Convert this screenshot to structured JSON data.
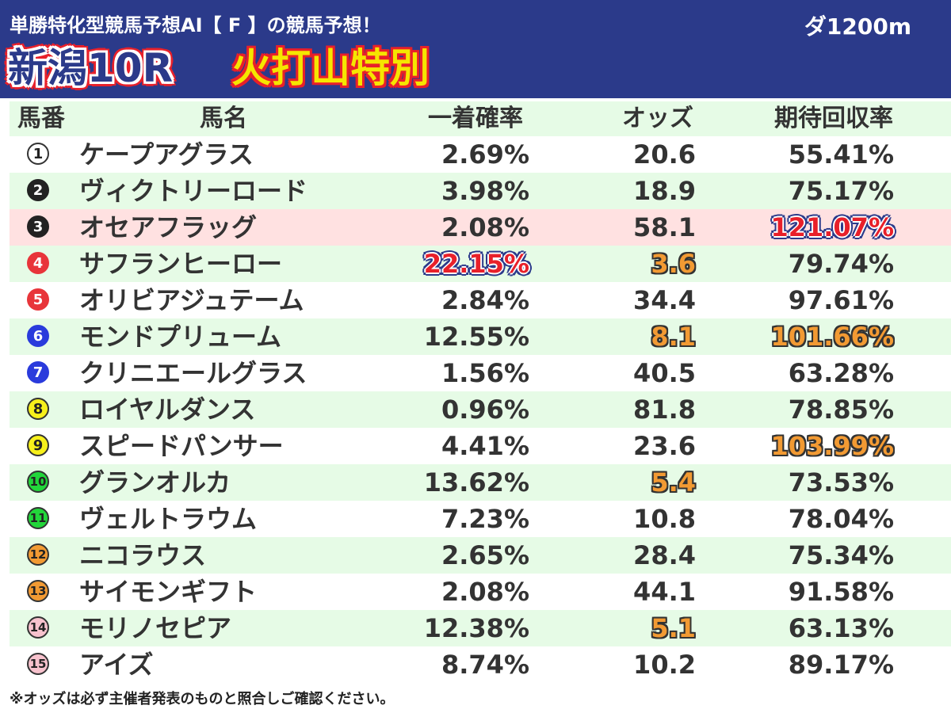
{
  "header": {
    "subtitle": "単勝特化型競馬予想AI【 F 】の競馬予想！",
    "venue": "新潟10R",
    "race_name": "火打山特別",
    "distance": "ダ1200m"
  },
  "columns": {
    "number": "馬番",
    "name": "馬名",
    "win_prob": "一着確率",
    "odds": "オッズ",
    "roi": "期待回収率"
  },
  "rows": [
    {
      "num": "1",
      "badge": "white",
      "name": "ケープアグラス",
      "prob": "2.69%",
      "odds": "20.6",
      "roi": "55.41%"
    },
    {
      "num": "2",
      "badge": "black",
      "name": "ヴィクトリーロード",
      "prob": "3.98%",
      "odds": "18.9",
      "roi": "75.17%"
    },
    {
      "num": "3",
      "badge": "black",
      "name": "オセアフラッグ",
      "prob": "2.08%",
      "odds": "58.1",
      "roi": "121.07%",
      "row_hl": true,
      "roi_hl": "blue"
    },
    {
      "num": "4",
      "badge": "red",
      "name": "サフランヒーロー",
      "prob": "22.15%",
      "odds": "3.6",
      "roi": "79.74%",
      "prob_hl": "blue",
      "odds_hl": "orange"
    },
    {
      "num": "5",
      "badge": "red",
      "name": "オリビアジュテーム",
      "prob": "2.84%",
      "odds": "34.4",
      "roi": "97.61%"
    },
    {
      "num": "6",
      "badge": "blue",
      "name": "モンドプリューム",
      "prob": "12.55%",
      "odds": "8.1",
      "roi": "101.66%",
      "odds_hl": "orange",
      "roi_hl": "orange"
    },
    {
      "num": "7",
      "badge": "blue",
      "name": "クリニエールグラス",
      "prob": "1.56%",
      "odds": "40.5",
      "roi": "63.28%"
    },
    {
      "num": "8",
      "badge": "yellow",
      "name": "ロイヤルダンス",
      "prob": "0.96%",
      "odds": "81.8",
      "roi": "78.85%"
    },
    {
      "num": "9",
      "badge": "yellow",
      "name": "スピードパンサー",
      "prob": "4.41%",
      "odds": "23.6",
      "roi": "103.99%",
      "roi_hl": "orange"
    },
    {
      "num": "10",
      "badge": "green",
      "name": "グランオルカ",
      "prob": "13.62%",
      "odds": "5.4",
      "roi": "73.53%",
      "odds_hl": "orange"
    },
    {
      "num": "11",
      "badge": "green",
      "name": "ヴェルトラウム",
      "prob": "7.23%",
      "odds": "10.8",
      "roi": "78.04%"
    },
    {
      "num": "12",
      "badge": "orange",
      "name": "ニコラウス",
      "prob": "2.65%",
      "odds": "28.4",
      "roi": "75.34%"
    },
    {
      "num": "13",
      "badge": "orange",
      "name": "サイモンギフト",
      "prob": "2.08%",
      "odds": "44.1",
      "roi": "91.58%"
    },
    {
      "num": "14",
      "badge": "pink",
      "name": "モリノセピア",
      "prob": "12.38%",
      "odds": "5.1",
      "roi": "63.13%",
      "odds_hl": "orange"
    },
    {
      "num": "15",
      "badge": "pink",
      "name": "アイズ",
      "prob": "8.74%",
      "odds": "10.2",
      "roi": "89.17%"
    }
  ],
  "footnote": "※オッズは必ず主催者発表のものと照合しご確認ください。",
  "colors": {
    "header_bg": "#2b3a8a",
    "row_alt": "#e6fbe6",
    "row_highlight": "#ffe1e1",
    "accent_red": "#e8202a",
    "accent_yellow": "#f5e600",
    "accent_orange": "#f29a33"
  }
}
